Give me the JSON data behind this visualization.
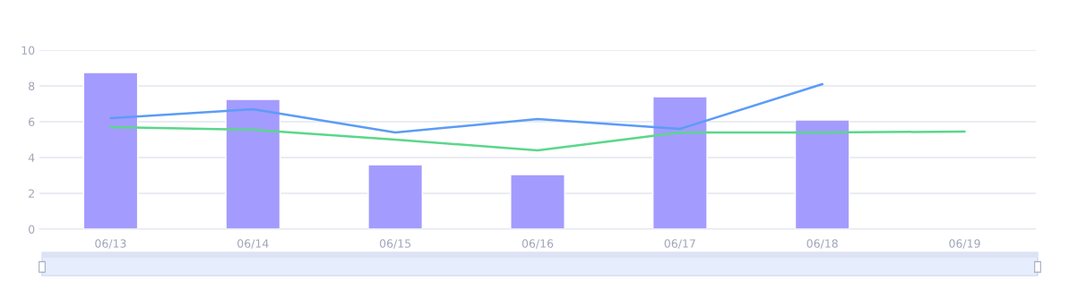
{
  "chart_data": {
    "type": "bar",
    "categories": [
      "06/13",
      "06/14",
      "06/15",
      "06/16",
      "06/17",
      "06/18",
      "06/19"
    ],
    "series": [
      {
        "color": "#a49bfe",
        "values": [
          8.75,
          7.25,
          3.6,
          3.05,
          7.4,
          6.1,
          null
        ]
      },
      {
        "type": "line",
        "color": "#5b9cf8",
        "values": [
          6.2,
          6.7,
          5.4,
          6.15,
          5.6,
          8.1,
          null
        ]
      },
      {
        "type": "line",
        "color": "#5ad78a",
        "values": [
          5.7,
          5.55,
          5.0,
          4.4,
          5.4,
          5.4,
          5.45
        ]
      }
    ],
    "ylim": [
      0,
      10
    ],
    "yticks": [
      0,
      2,
      4,
      6,
      8,
      10
    ],
    "grid": "y",
    "marker": "none",
    "line_style": "solid",
    "legend": false
  }
}
